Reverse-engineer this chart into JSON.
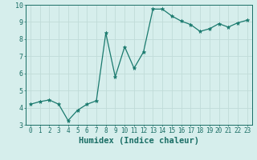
{
  "x": [
    0,
    1,
    2,
    3,
    4,
    5,
    6,
    7,
    8,
    9,
    10,
    11,
    12,
    13,
    14,
    15,
    16,
    17,
    18,
    19,
    20,
    21,
    22,
    23
  ],
  "y": [
    4.2,
    4.35,
    4.45,
    4.2,
    3.25,
    3.85,
    4.2,
    4.4,
    8.35,
    5.8,
    7.55,
    6.3,
    7.25,
    9.75,
    9.75,
    9.35,
    9.05,
    8.85,
    8.45,
    8.6,
    8.9,
    8.7,
    8.95,
    9.1
  ],
  "line_color": "#1a7a6e",
  "marker": "*",
  "bg_color": "#d6eeec",
  "grid_color": "#c0dbd8",
  "xlabel": "Humidex (Indice chaleur)",
  "xlim": [
    -0.5,
    23.5
  ],
  "ylim": [
    3.0,
    10.0
  ],
  "yticks": [
    3,
    4,
    5,
    6,
    7,
    8,
    9,
    10
  ],
  "xticks": [
    0,
    1,
    2,
    3,
    4,
    5,
    6,
    7,
    8,
    9,
    10,
    11,
    12,
    13,
    14,
    15,
    16,
    17,
    18,
    19,
    20,
    21,
    22,
    23
  ],
  "xtick_labels": [
    "0",
    "1",
    "2",
    "3",
    "4",
    "5",
    "6",
    "7",
    "8",
    "9",
    "10",
    "11",
    "12",
    "13",
    "14",
    "15",
    "16",
    "17",
    "18",
    "19",
    "20",
    "21",
    "22",
    "23"
  ],
  "tick_color": "#1a6e65",
  "label_fontsize": 7.5,
  "tick_fontsize": 5.5
}
